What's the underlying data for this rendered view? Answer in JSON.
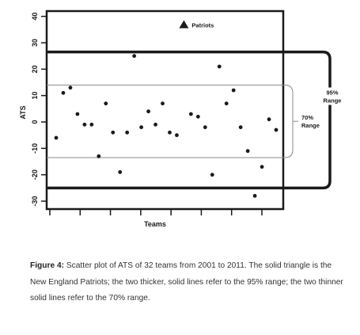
{
  "chart_data": {
    "type": "scatter",
    "xlabel": "Teams",
    "ylabel": "ATS",
    "ylim": [
      -33,
      42
    ],
    "yticks": [
      "-30",
      "-20",
      "-10",
      "0",
      "10",
      "20",
      "30",
      "40"
    ],
    "ytick_values": [
      -30,
      -20,
      -10,
      0,
      10,
      20,
      30,
      40
    ],
    "x_ticks": 8,
    "points": [
      {
        "x": 1,
        "y": -6
      },
      {
        "x": 2,
        "y": 11
      },
      {
        "x": 3,
        "y": 13
      },
      {
        "x": 4,
        "y": 3
      },
      {
        "x": 5,
        "y": -1
      },
      {
        "x": 6,
        "y": -1
      },
      {
        "x": 7,
        "y": -13
      },
      {
        "x": 8,
        "y": 7
      },
      {
        "x": 9,
        "y": -4
      },
      {
        "x": 10,
        "y": -19
      },
      {
        "x": 11,
        "y": -4
      },
      {
        "x": 12,
        "y": 25
      },
      {
        "x": 13,
        "y": -2
      },
      {
        "x": 14,
        "y": 4
      },
      {
        "x": 15,
        "y": -1
      },
      {
        "x": 16,
        "y": 7
      },
      {
        "x": 17,
        "y": -4
      },
      {
        "x": 18,
        "y": -5
      },
      {
        "x": 20,
        "y": 3
      },
      {
        "x": 21,
        "y": 2
      },
      {
        "x": 22,
        "y": -2
      },
      {
        "x": 23,
        "y": -20
      },
      {
        "x": 24,
        "y": 21
      },
      {
        "x": 25,
        "y": 7
      },
      {
        "x": 26,
        "y": 12
      },
      {
        "x": 27,
        "y": -2
      },
      {
        "x": 28,
        "y": -11
      },
      {
        "x": 29,
        "y": -28
      },
      {
        "x": 30,
        "y": -17
      },
      {
        "x": 31,
        "y": 1
      },
      {
        "x": 32,
        "y": -3
      }
    ],
    "patriots": {
      "label": "Patriots",
      "x": 19,
      "y": 37
    },
    "range_95": {
      "label": "95%\nRange",
      "upper": 26.5,
      "lower": -25
    },
    "range_70": {
      "label": "70%\nRange",
      "upper": 14,
      "lower": -13.5
    }
  },
  "caption": {
    "figure_label": "Figure 4:",
    "text": " Scatter plot of ATS of 32 teams from 2001 to 2011. The solid triangle is the New England Patriots; the two thicker, solid lines refer to the 95% range; the two thinner solid lines refer to the 70% range."
  },
  "colors": {
    "ink": "#1a1a1a",
    "thin_line": "#8a8a8a"
  }
}
